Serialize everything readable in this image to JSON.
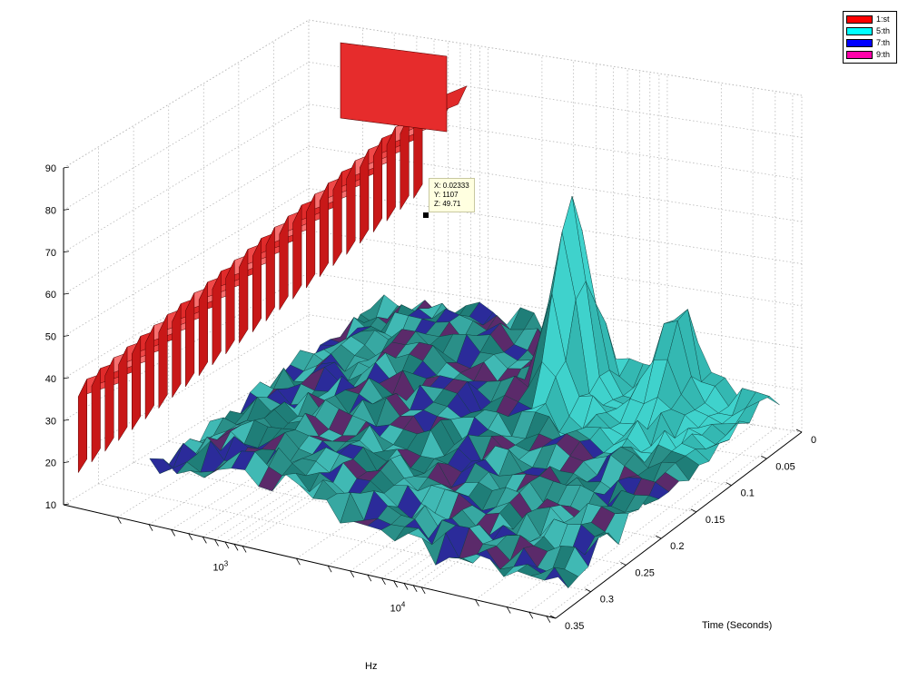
{
  "chart_data": {
    "type": "surface",
    "title": "",
    "xlabel": "Hz",
    "ylabel": "Time (Seconds)",
    "zlabel": "",
    "x_scale": "log",
    "x_ticks": [
      {
        "base": "10",
        "exp": "3"
      },
      {
        "base": "10",
        "exp": "4"
      }
    ],
    "y_ticks": [
      "0",
      "0.05",
      "0.1",
      "0.15",
      "0.2",
      "0.25",
      "0.3",
      "0.35"
    ],
    "y_range": [
      0,
      0.35
    ],
    "z_ticks": [
      "10",
      "20",
      "30",
      "40",
      "50",
      "60",
      "70",
      "80",
      "90"
    ],
    "z_range": [
      10,
      90
    ],
    "grid": true,
    "legend_position": "top-right",
    "series": [
      {
        "name": "1:st",
        "color": "#ff0000"
      },
      {
        "name": "5:th",
        "color": "#00ffff"
      },
      {
        "name": "7:th",
        "color": "#0000ff"
      },
      {
        "name": "9:th",
        "color": "#ff00aa"
      }
    ],
    "datatip": {
      "x_label": "X: 0.02333",
      "y_label": "Y: 1107",
      "z_label": "Z: 49.71"
    }
  }
}
